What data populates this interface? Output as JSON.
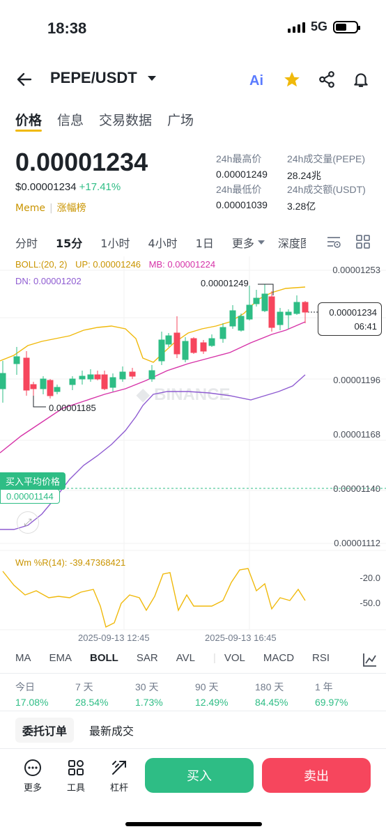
{
  "status": {
    "time": "18:38",
    "network": "5G"
  },
  "header": {
    "pair": "PEPE/USDT"
  },
  "tabs": [
    "价格",
    "信息",
    "交易数据",
    "广场"
  ],
  "price": {
    "last": "0.00001234",
    "usd": "$0.00001234",
    "change": "+17.41%",
    "tag1": "Meme",
    "tag2": "涨幅榜"
  },
  "stats": {
    "high_label": "24h最高价",
    "high": "0.00001249",
    "vol_label": "24h成交量(PEPE)",
    "vol": "28.24兆",
    "low_label": "24h最低价",
    "low": "0.00001039",
    "amt_label": "24h成交额(USDT)",
    "amt": "3.28亿"
  },
  "timeframes": [
    "分时",
    "15分",
    "1小时",
    "4小时",
    "1日",
    "更多",
    "深度图"
  ],
  "boll": {
    "label": "BOLL:(20, 2)",
    "up": "UP: 0.00001246",
    "mb": "MB: 0.00001224",
    "dn": "DN: 0.00001202"
  },
  "y_axis": [
    "0.00001253",
    "0.00001196",
    "0.00001168",
    "0.00001140",
    "0.00001112"
  ],
  "annotations": {
    "high": "0.00001249",
    "low": "0.00001185"
  },
  "current": {
    "price": "0.00001234",
    "countdown": "06:41"
  },
  "buy_avg": {
    "label": "买入平均价格",
    "value": "0.00001144"
  },
  "watermark": "BINANCE",
  "wr": {
    "label": "Wm %R(14): -39.47368421",
    "ticks": [
      "-20.0",
      "-50.0"
    ]
  },
  "times": [
    "2025-09-13 12:45",
    "2025-09-13 16:45"
  ],
  "indicators": [
    "MA",
    "EMA",
    "BOLL",
    "SAR",
    "AVL",
    "VOL",
    "MACD",
    "RSI"
  ],
  "performance": [
    {
      "period": "今日",
      "value": "17.08%"
    },
    {
      "period": "7 天",
      "value": "28.54%"
    },
    {
      "period": "30 天",
      "value": "1.73%"
    },
    {
      "period": "90 天",
      "value": "12.49%"
    },
    {
      "period": "180 天",
      "value": "84.45%"
    },
    {
      "period": "1 年",
      "value": "69.97%"
    }
  ],
  "order_tabs": [
    "委托订单",
    "最新成交"
  ],
  "tools": [
    "更多",
    "工具",
    "杠杆"
  ],
  "actions": {
    "buy": "买入",
    "sell": "卖出"
  },
  "colors": {
    "up": "#2ebd85",
    "down": "#f6465d",
    "brand": "#f0b90b"
  }
}
